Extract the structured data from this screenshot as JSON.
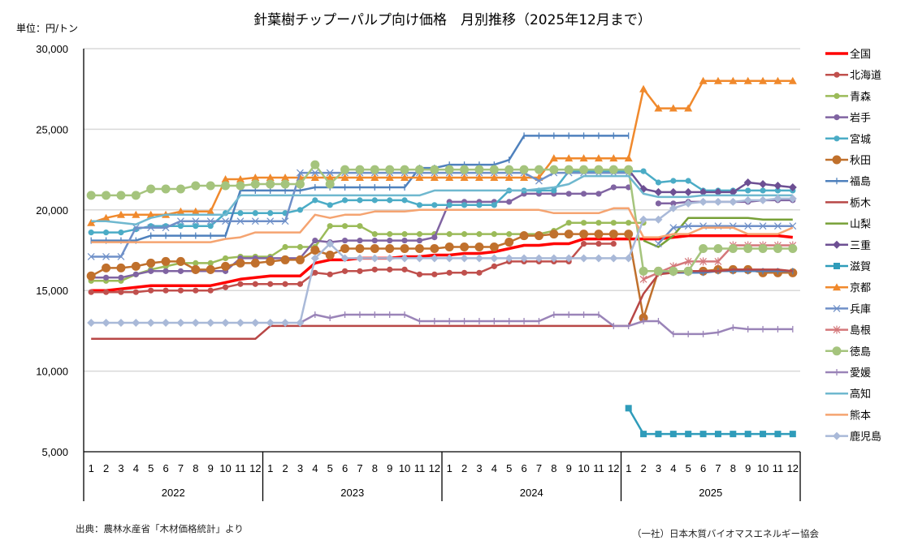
{
  "title": "針葉樹チップーパルプ向け価格　月別推移（2025年12月まで）",
  "unit_label": "単位：円/トン",
  "source": "出典：農林水産省「木材価格統計」より",
  "credit": "（一社）日本木質バイオマスエネルギー協会",
  "chart_data": {
    "type": "line",
    "title": "針葉樹チップーパルプ向け価格　月別推移（2025年12月まで）",
    "ylabel": "単位：円/トン",
    "xlabel": "",
    "ylim": [
      5000,
      30000
    ],
    "yticks": [
      5000,
      10000,
      15000,
      20000,
      25000,
      30000
    ],
    "ytick_labels": [
      "5,000",
      "10,000",
      "15,000",
      "20,000",
      "25,000",
      "30,000"
    ],
    "grid": true,
    "legend_position": "right",
    "years": [
      "2022",
      "2023",
      "2024",
      "2025"
    ],
    "months": [
      "1",
      "2",
      "3",
      "4",
      "5",
      "6",
      "7",
      "8",
      "9",
      "10",
      "11",
      "12"
    ],
    "series": [
      {
        "name": "全国",
        "color": "#ff0000",
        "marker": "none",
        "width": 3.5,
        "values": [
          15000,
          15000,
          15100,
          15200,
          15300,
          15300,
          15300,
          15300,
          15300,
          15500,
          15700,
          15800,
          15900,
          15900,
          15900,
          16700,
          16900,
          16900,
          17000,
          17000,
          17000,
          17100,
          17100,
          17200,
          17200,
          17300,
          17300,
          17400,
          17600,
          17800,
          17800,
          17900,
          17900,
          18200,
          18200,
          18200,
          18200,
          18200,
          18200,
          18300,
          18400,
          18400,
          18400,
          18400,
          18400,
          18400,
          18400,
          18300
        ]
      },
      {
        "name": "北海道",
        "color": "#c0504d",
        "marker": "circle",
        "width": 2.5,
        "values": [
          14900,
          14900,
          14900,
          14900,
          15000,
          15000,
          15000,
          15000,
          15000,
          15200,
          15400,
          15400,
          15400,
          15400,
          15400,
          16100,
          16000,
          16200,
          16200,
          16300,
          16300,
          16300,
          16000,
          16000,
          16100,
          16100,
          16100,
          16500,
          16800,
          16800,
          16800,
          16800,
          16800,
          17900,
          17900,
          17900,
          null,
          null,
          null,
          null,
          null,
          null,
          null,
          null,
          null,
          null,
          null,
          null
        ]
      },
      {
        "name": "青森",
        "color": "#9bbb59",
        "marker": "circle",
        "width": 2.5,
        "values": [
          15600,
          15600,
          15600,
          16000,
          16300,
          16500,
          16700,
          16700,
          16700,
          17000,
          17100,
          17100,
          17100,
          17700,
          17700,
          17700,
          19000,
          19000,
          19000,
          18500,
          18500,
          18500,
          18500,
          18500,
          18500,
          18500,
          18500,
          18500,
          18500,
          18500,
          18500,
          18700,
          19200,
          19200,
          19200,
          19200,
          19200,
          19200,
          null,
          null,
          null,
          null,
          null,
          null,
          null,
          null,
          null,
          null
        ]
      },
      {
        "name": "岩手",
        "color": "#8064a2",
        "marker": "circle",
        "width": 2.5,
        "values": [
          15800,
          15800,
          15800,
          16000,
          16200,
          16200,
          16200,
          16200,
          16200,
          16200,
          17000,
          17000,
          17000,
          17000,
          17000,
          18100,
          18000,
          18100,
          18100,
          18100,
          18100,
          18100,
          18100,
          18300,
          20500,
          20500,
          20500,
          20500,
          20500,
          21000,
          21000,
          21000,
          21000,
          21000,
          21000,
          21400,
          21400,
          null,
          20400,
          20400,
          20500,
          20500,
          20500,
          20500,
          20500,
          20600,
          20600,
          20600
        ]
      },
      {
        "name": "宮城",
        "color": "#4bacc6",
        "marker": "circle",
        "width": 2.5,
        "values": [
          18600,
          18600,
          18600,
          18800,
          19000,
          19000,
          19000,
          19000,
          19000,
          19800,
          19800,
          19800,
          19800,
          19800,
          20000,
          20600,
          20300,
          20600,
          20600,
          20600,
          20600,
          20600,
          20300,
          20300,
          20300,
          20300,
          20300,
          20300,
          21200,
          21200,
          21200,
          21200,
          22400,
          22400,
          22400,
          22400,
          22400,
          22400,
          21700,
          21800,
          21800,
          21200,
          21200,
          21200,
          21200,
          21200,
          21200,
          21200
        ]
      },
      {
        "name": "秋田",
        "color": "#c0702c",
        "marker": "circle-lg",
        "width": 2.5,
        "values": [
          15900,
          16400,
          16400,
          16500,
          16700,
          16800,
          16800,
          16300,
          16300,
          16500,
          16700,
          16700,
          16800,
          16900,
          16900,
          17500,
          17200,
          17600,
          17600,
          17600,
          17600,
          17600,
          17600,
          17600,
          17700,
          17700,
          17700,
          17700,
          18000,
          18400,
          18400,
          18500,
          18500,
          18500,
          18500,
          18500,
          18500,
          13300,
          16200,
          16200,
          16200,
          16200,
          16300,
          16300,
          16300,
          16100,
          16100,
          16100
        ]
      },
      {
        "name": "福島",
        "color": "#4f81bd",
        "marker": "plus",
        "width": 2.5,
        "values": [
          18100,
          18100,
          18100,
          18100,
          18400,
          18400,
          18400,
          18400,
          18400,
          18400,
          21200,
          21200,
          21200,
          21200,
          21200,
          21400,
          21400,
          21400,
          21400,
          21400,
          21400,
          21400,
          22600,
          22600,
          22800,
          22800,
          22800,
          22800,
          23100,
          24600,
          24600,
          24600,
          24600,
          24600,
          24600,
          24600,
          24600,
          null,
          16100,
          16100,
          16100,
          16100,
          16200,
          16200,
          16200,
          16200,
          16200,
          16200
        ]
      },
      {
        "name": "栃木",
        "color": "#b84746",
        "marker": "none",
        "width": 2.5,
        "values": [
          12000,
          12000,
          12000,
          12000,
          12000,
          12000,
          12000,
          12000,
          12000,
          12000,
          12000,
          12000,
          12800,
          12800,
          12800,
          12800,
          12800,
          12800,
          12800,
          12800,
          12800,
          12800,
          12800,
          12800,
          12800,
          12800,
          12800,
          12800,
          12800,
          12800,
          12800,
          12800,
          12800,
          12800,
          12800,
          12800,
          12800,
          14800,
          16000,
          16100,
          16200,
          16200,
          16200,
          16300,
          16300,
          16300,
          16300,
          16200
        ]
      },
      {
        "name": "山梨",
        "color": "#77a037",
        "marker": "none",
        "width": 2.5,
        "values": [
          null,
          null,
          null,
          null,
          null,
          null,
          null,
          null,
          null,
          null,
          null,
          null,
          null,
          null,
          null,
          null,
          null,
          null,
          null,
          null,
          null,
          null,
          null,
          null,
          null,
          null,
          null,
          null,
          null,
          null,
          null,
          null,
          null,
          null,
          null,
          null,
          null,
          18100,
          17700,
          18400,
          19500,
          19500,
          19500,
          19500,
          19500,
          19400,
          19400,
          19400
        ]
      },
      {
        "name": "三重",
        "color": "#6d4f93",
        "marker": "diamond",
        "width": 2.5,
        "values": [
          null,
          null,
          null,
          null,
          null,
          null,
          null,
          null,
          null,
          null,
          null,
          null,
          null,
          null,
          null,
          null,
          null,
          null,
          null,
          null,
          null,
          null,
          null,
          null,
          null,
          null,
          null,
          null,
          null,
          null,
          null,
          null,
          null,
          null,
          null,
          null,
          22500,
          21300,
          21100,
          21100,
          21100,
          21100,
          21100,
          21100,
          21700,
          21600,
          21500,
          21400
        ]
      },
      {
        "name": "滋賀",
        "color": "#2f9cba",
        "marker": "square",
        "width": 2.5,
        "values": [
          null,
          null,
          null,
          null,
          null,
          null,
          null,
          null,
          null,
          null,
          null,
          null,
          null,
          null,
          null,
          null,
          null,
          null,
          null,
          null,
          null,
          null,
          null,
          null,
          null,
          null,
          null,
          null,
          null,
          null,
          null,
          null,
          null,
          null,
          null,
          null,
          7700,
          6100,
          6100,
          6100,
          6100,
          6100,
          6100,
          6100,
          6100,
          6100,
          6100,
          6100
        ]
      },
      {
        "name": "京都",
        "color": "#f0892c",
        "marker": "triangle",
        "width": 2.5,
        "values": [
          19200,
          19500,
          19700,
          19700,
          19700,
          19700,
          19900,
          19900,
          19900,
          21900,
          21900,
          22000,
          22000,
          22000,
          22000,
          22000,
          22000,
          22000,
          22000,
          22000,
          22000,
          22000,
          22000,
          22000,
          22000,
          22000,
          22000,
          22000,
          22000,
          22000,
          22000,
          23200,
          23200,
          23200,
          23200,
          23200,
          23200,
          27500,
          26300,
          26300,
          26300,
          28000,
          28000,
          28000,
          28000,
          28000,
          28000,
          28000
        ]
      },
      {
        "name": "兵庫",
        "color": "#6f90c8",
        "marker": "x",
        "width": 2.5,
        "values": [
          17100,
          17100,
          17100,
          18900,
          18900,
          18900,
          19300,
          19300,
          19300,
          19300,
          19300,
          19300,
          19300,
          19300,
          22300,
          22300,
          22300,
          22300,
          22300,
          22300,
          22300,
          22300,
          22300,
          22300,
          22300,
          22300,
          22300,
          22300,
          22300,
          22300,
          21800,
          22300,
          22300,
          22300,
          22300,
          22300,
          22300,
          null,
          17900,
          18900,
          19000,
          19000,
          19000,
          19000,
          19000,
          19000,
          19000,
          19000
        ]
      },
      {
        "name": "島根",
        "color": "#d4777a",
        "marker": "star",
        "width": 2.5,
        "values": [
          null,
          null,
          null,
          null,
          null,
          null,
          null,
          null,
          null,
          null,
          null,
          null,
          null,
          null,
          null,
          null,
          null,
          null,
          null,
          null,
          null,
          null,
          null,
          null,
          null,
          null,
          null,
          null,
          null,
          null,
          null,
          null,
          null,
          null,
          null,
          null,
          null,
          15700,
          16100,
          16500,
          16800,
          16800,
          16800,
          17800,
          17800,
          17800,
          17800,
          17800
        ]
      },
      {
        "name": "徳島",
        "color": "#a5c47d",
        "marker": "circle-lg",
        "width": 2.5,
        "values": [
          20900,
          20900,
          20900,
          20900,
          21300,
          21300,
          21300,
          21500,
          21500,
          21500,
          21500,
          21600,
          21600,
          21600,
          21600,
          22800,
          21600,
          22500,
          22500,
          22500,
          22500,
          22500,
          22500,
          22500,
          22500,
          22500,
          22500,
          22500,
          22500,
          22500,
          22500,
          22500,
          22500,
          22500,
          22500,
          22500,
          22500,
          16200,
          16200,
          16200,
          16200,
          17600,
          17600,
          17600,
          17600,
          17600,
          17600,
          17600
        ]
      },
      {
        "name": "愛媛",
        "color": "#9a84b8",
        "marker": "plus",
        "width": 2.5,
        "values": [
          null,
          null,
          null,
          null,
          null,
          null,
          null,
          null,
          null,
          null,
          null,
          null,
          null,
          null,
          13000,
          13500,
          13300,
          13500,
          13500,
          13500,
          13500,
          13500,
          13100,
          13100,
          13100,
          13100,
          13100,
          13100,
          13100,
          13100,
          13100,
          13500,
          13500,
          13500,
          13500,
          12800,
          12800,
          13100,
          13100,
          12300,
          12300,
          12300,
          12400,
          12700,
          12600,
          12600,
          12600,
          12600
        ]
      },
      {
        "name": "高知",
        "color": "#6fb8cf",
        "marker": "none",
        "width": 2.5,
        "values": [
          19300,
          19300,
          19200,
          19100,
          19500,
          19700,
          19700,
          19700,
          19700,
          19700,
          20900,
          20900,
          20900,
          20900,
          20900,
          20900,
          20900,
          20900,
          20900,
          20900,
          20900,
          20900,
          20900,
          21200,
          21200,
          21200,
          21200,
          21200,
          21200,
          21200,
          21300,
          21400,
          21600,
          22100,
          22100,
          22100,
          22100,
          21000,
          20800,
          20800,
          20800,
          20900,
          20900,
          20900,
          20900,
          20900,
          20900,
          20900
        ]
      },
      {
        "name": "熊本",
        "color": "#f5a471",
        "marker": "none",
        "width": 2.5,
        "values": [
          18000,
          18000,
          18000,
          18000,
          18000,
          18000,
          18000,
          18000,
          18000,
          18200,
          18300,
          18600,
          18600,
          18600,
          18600,
          19700,
          19500,
          19700,
          19700,
          19900,
          19900,
          19900,
          20000,
          20000,
          20000,
          20000,
          20000,
          20000,
          20000,
          20000,
          20000,
          19800,
          19800,
          19800,
          19800,
          20100,
          20100,
          18300,
          18300,
          18500,
          18500,
          18900,
          18900,
          18900,
          18500,
          18500,
          18500,
          18900
        ]
      },
      {
        "name": "鹿児島",
        "color": "#a9b9d8",
        "marker": "diamond",
        "width": 2.5,
        "values": [
          13000,
          13000,
          13000,
          13000,
          13000,
          13000,
          13000,
          13000,
          13000,
          13000,
          13000,
          13000,
          13000,
          13000,
          13000,
          17000,
          17900,
          17000,
          17000,
          17000,
          17000,
          17000,
          17000,
          17000,
          17000,
          17000,
          17000,
          17000,
          17000,
          17000,
          17000,
          17000,
          17000,
          17000,
          17000,
          17000,
          17000,
          19400,
          19400,
          20100,
          20400,
          20500,
          20500,
          20500,
          20600,
          20600,
          20700,
          20700
        ]
      }
    ]
  }
}
